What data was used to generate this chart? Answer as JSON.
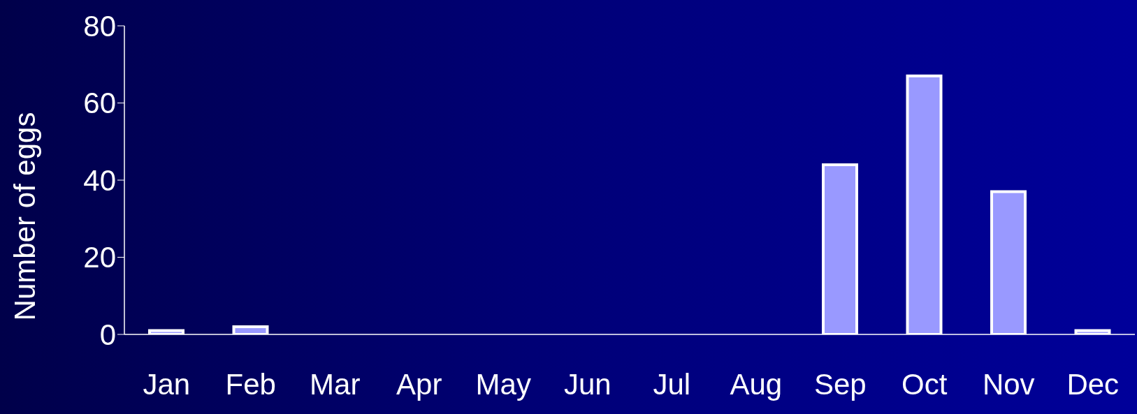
{
  "chart_data": {
    "type": "bar",
    "ylabel": "Number of eggs",
    "categories": [
      "Jan",
      "Feb",
      "Mar",
      "Apr",
      "May",
      "Jun",
      "Jul",
      "Aug",
      "Sep",
      "Oct",
      "Nov",
      "Dec"
    ],
    "values": [
      1,
      2,
      0,
      0,
      0,
      0,
      0,
      0,
      44,
      67,
      37,
      1
    ],
    "color": "#9999ff",
    "ylim": [
      0,
      80
    ],
    "yticks": [
      0,
      20,
      40,
      60,
      80
    ],
    "grid": false,
    "legend": false
  }
}
